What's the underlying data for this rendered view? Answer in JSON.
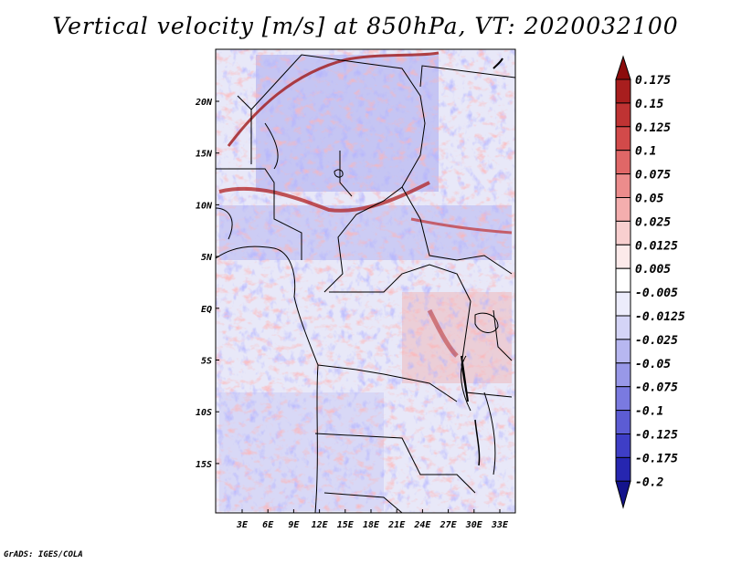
{
  "title": "Vertical velocity [m/s] at 850hPa, VT: 2020032100",
  "credit": "GrADS: IGES/COLA",
  "map": {
    "x_ticks": [
      "3E",
      "6E",
      "9E",
      "12E",
      "15E",
      "18E",
      "21E",
      "24E",
      "27E",
      "30E",
      "33E"
    ],
    "y_ticks": [
      "20N",
      "15N",
      "10N",
      "5N",
      "EQ",
      "5S",
      "10S",
      "15S"
    ]
  },
  "colorbar": {
    "labels": [
      "0.175",
      "0.15",
      "0.125",
      "0.1",
      "0.075",
      "0.05",
      "0.025",
      "0.0125",
      "0.005",
      "-0.005",
      "-0.0125",
      "-0.025",
      "-0.05",
      "-0.075",
      "-0.1",
      "-0.125",
      "-0.175",
      "-0.2"
    ],
    "colors": [
      "#8c0c0c",
      "#a81e1e",
      "#bf3333",
      "#d24a4a",
      "#e06767",
      "#ec8c8c",
      "#f4aeae",
      "#f8cfcf",
      "#fceaea",
      "#ffffff",
      "#ececfb",
      "#d4d4f6",
      "#b7b7f0",
      "#9898e8",
      "#7a7ae0",
      "#5c5cd4",
      "#3e3ec6",
      "#2626b0",
      "#14148c"
    ]
  },
  "chart_data": {
    "type": "heatmap",
    "title": "Vertical velocity [m/s] at 850hPa, VT: 2020032100",
    "variable": "Vertical velocity",
    "units": "m/s",
    "level": "850hPa",
    "valid_time": "2020032100",
    "x_ticks": [
      "3E",
      "6E",
      "9E",
      "12E",
      "15E",
      "18E",
      "21E",
      "24E",
      "27E",
      "30E",
      "33E"
    ],
    "y_ticks": [
      "20N",
      "15N",
      "10N",
      "5N",
      "EQ",
      "5S",
      "10S",
      "15S"
    ],
    "levels": [
      -0.2,
      -0.175,
      -0.125,
      -0.1,
      -0.075,
      -0.05,
      -0.025,
      -0.0125,
      -0.005,
      0.005,
      0.0125,
      0.025,
      0.05,
      0.075,
      0.1,
      0.125,
      0.15,
      0.175
    ]
  }
}
